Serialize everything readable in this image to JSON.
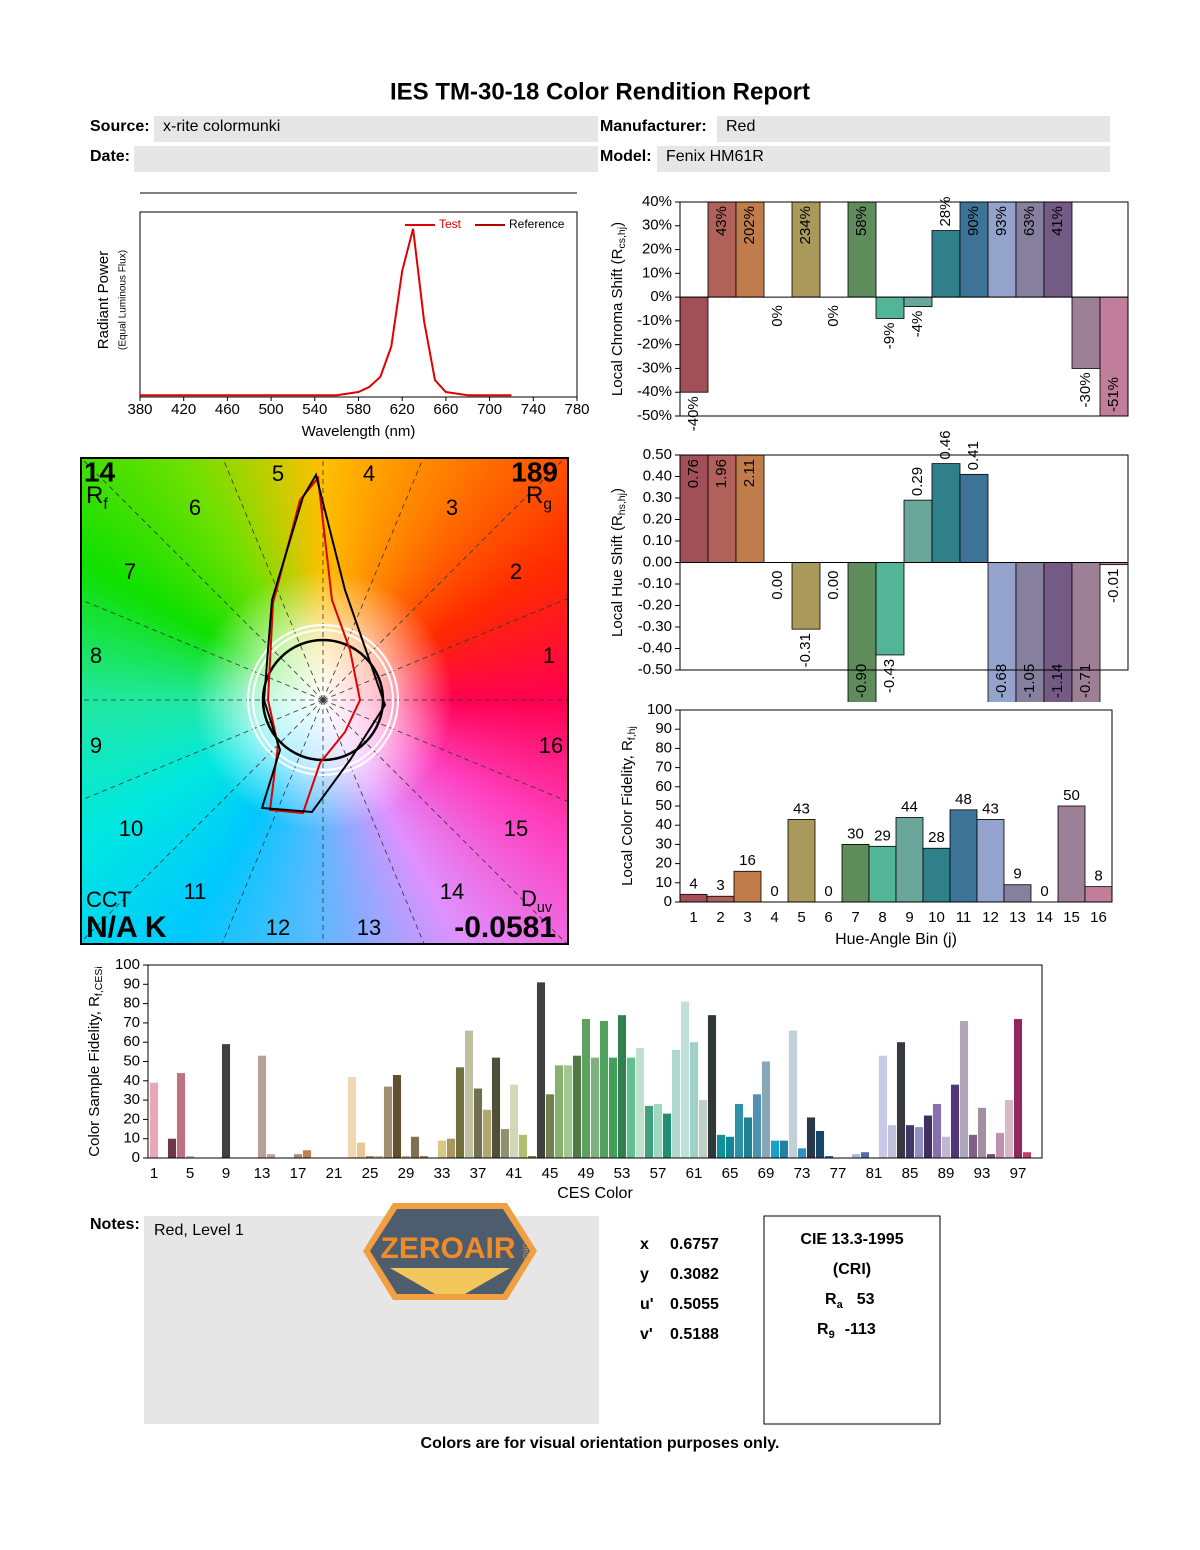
{
  "title": "IES TM-30-18 Color Rendition Report",
  "fields": {
    "source_label": "Source:",
    "source": "x-rite colormunki",
    "manufacturer_label": "Manufacturer:",
    "manufacturer": "Red",
    "date_label": "Date:",
    "model_label": "Model:",
    "model": "Fenix HM61R"
  },
  "chart_data": [
    {
      "type": "line",
      "xlabel": "Wavelength (nm)",
      "ylabel": "Radiant Power",
      "ylabel2": "(Equal Luminous Flux)",
      "x": [
        380,
        390,
        400,
        410,
        420,
        430,
        440,
        450,
        460,
        470,
        480,
        490,
        500,
        510,
        520,
        530,
        540,
        550,
        560,
        570,
        580,
        590,
        600,
        610,
        620,
        630,
        640,
        650,
        660,
        670,
        680,
        690,
        700,
        710,
        720,
        730,
        740,
        750,
        760,
        770,
        780
      ],
      "series": [
        {
          "name": "Test",
          "color": "#e00000",
          "values": [
            0.01,
            0.01,
            0.01,
            0.01,
            0.01,
            0.01,
            0.01,
            0.01,
            0.01,
            0.01,
            0.01,
            0.01,
            0.01,
            0.01,
            0.01,
            0.01,
            0.01,
            0.01,
            0.01,
            0.02,
            0.03,
            0.06,
            0.12,
            0.3,
            0.75,
            1.0,
            0.45,
            0.1,
            0.03,
            0.02,
            0.01,
            0.01,
            0.01,
            0.01,
            0.01,
            null,
            null,
            null,
            null,
            null,
            null
          ]
        },
        {
          "name": "Reference",
          "color": "#b00000",
          "values": [
            null,
            null,
            null,
            null,
            null,
            null,
            null,
            null,
            null,
            null,
            null,
            null,
            null,
            null,
            null,
            null,
            null,
            null,
            null,
            null,
            null,
            null,
            null,
            null,
            null,
            null,
            null,
            null,
            null,
            null,
            null,
            null,
            null,
            null,
            null,
            null,
            null,
            null,
            null,
            null,
            null
          ]
        }
      ],
      "xlim": [
        380,
        780
      ],
      "ylim": [
        0,
        1.1
      ],
      "xticks": [
        380,
        420,
        460,
        500,
        540,
        580,
        620,
        660,
        700,
        740,
        780
      ]
    },
    {
      "type": "bar",
      "ylabel": "Local Chroma Shift (R",
      "ylabel_sub": "cs,hj",
      "ylabel_end": ")",
      "values": [
        -40,
        43,
        202,
        0,
        234,
        0,
        58,
        -9,
        -4,
        28,
        90,
        93,
        63,
        41,
        -30,
        -51
      ],
      "value_labels": [
        "-40%",
        "43%",
        "202%",
        "0%",
        "234%",
        "0%",
        "58%",
        "-9%",
        "-4%",
        "28%",
        "90%",
        "93%",
        "63%",
        "41%",
        "-30%",
        "-51%"
      ],
      "colors": [
        "#a34f59",
        "#b0625a",
        "#c07d4b",
        "#c89c4a",
        "#a99a5c",
        "#8f9a5c",
        "#5e8c5a",
        "#52b597",
        "#6ba69a",
        "#2f8088",
        "#3d7397",
        "#94a3cb",
        "#86809e",
        "#745b86",
        "#9e8096",
        "#c07e9b"
      ],
      "ylim": [
        -50,
        40
      ],
      "yticks": [
        {
          "value": -50,
          "label": "-50%"
        },
        {
          "value": -40,
          "label": "-40%"
        },
        {
          "value": -30,
          "label": "-30%"
        },
        {
          "value": -20,
          "label": "-20%"
        },
        {
          "value": -10,
          "label": "-10%"
        },
        {
          "value": 0,
          "label": "0%"
        },
        {
          "value": 10,
          "label": "10%"
        },
        {
          "value": 20,
          "label": "20%"
        },
        {
          "value": 30,
          "label": "30%"
        },
        {
          "value": 40,
          "label": "40%"
        }
      ]
    },
    {
      "type": "bar",
      "ylabel": "Local Hue Shift (R",
      "ylabel_sub": "hs,hj",
      "ylabel_end": ")",
      "values": [
        0.76,
        1.96,
        2.11,
        0,
        -0.31,
        0,
        -0.9,
        -0.43,
        0.29,
        0.46,
        0.41,
        -0.68,
        -1.05,
        -1.14,
        -0.71,
        -0.01
      ],
      "value_labels": [
        "0.76",
        "1.96",
        "2.11",
        "0.00",
        "-0.31",
        "0.00",
        "-0.90",
        "-0.43",
        "0.29",
        "0.46",
        "0.41",
        "-0.68",
        "-1.05",
        "-1.14",
        "-0.71",
        "-0.01"
      ],
      "colors": [
        "#a34f59",
        "#b0625a",
        "#c07d4b",
        "#c89c4a",
        "#a99a5c",
        "#8f9a5c",
        "#5e8c5a",
        "#52b597",
        "#6ba69a",
        "#2f8088",
        "#3d7397",
        "#94a3cb",
        "#86809e",
        "#745b86",
        "#9e8096",
        "#c07e9b"
      ],
      "ylim": [
        -0.5,
        0.5
      ],
      "yticks": [
        {
          "value": -0.5,
          "label": "-0.50"
        },
        {
          "value": -0.4,
          "label": "-0.40"
        },
        {
          "value": -0.3,
          "label": "-0.30"
        },
        {
          "value": -0.2,
          "label": "-0.20"
        },
        {
          "value": -0.1,
          "label": "-0.10"
        },
        {
          "value": 0,
          "label": "0.00"
        },
        {
          "value": 0.1,
          "label": "0.10"
        },
        {
          "value": 0.2,
          "label": "0.20"
        },
        {
          "value": 0.3,
          "label": "0.30"
        },
        {
          "value": 0.4,
          "label": "0.40"
        },
        {
          "value": 0.5,
          "label": "0.50"
        }
      ]
    },
    {
      "type": "vector",
      "categories": [
        "1",
        "2",
        "3",
        "4",
        "5",
        "6",
        "7",
        "8",
        "9",
        "10",
        "11",
        "12",
        "13",
        "14",
        "15",
        "16"
      ],
      "rf": 14,
      "rf_label": "R",
      "rf_sub": "f",
      "rg": 189,
      "rg_label": "R",
      "rg_sub": "g",
      "cct_label": "CCT",
      "cct": "N/A K",
      "duv_label": "D",
      "duv_sub": "uv",
      "duv": -0.0581
    },
    {
      "type": "bar",
      "xlabel": "Hue-Angle Bin (j)",
      "ylabel": "Local Color Fidelity, R",
      "ylabel_sub": "f,hj",
      "categories": [
        "1",
        "2",
        "3",
        "4",
        "5",
        "6",
        "7",
        "8",
        "9",
        "10",
        "11",
        "12",
        "13",
        "14",
        "15",
        "16"
      ],
      "values": [
        4,
        3,
        16,
        0,
        43,
        0,
        30,
        29,
        44,
        28,
        48,
        43,
        9,
        0,
        50,
        8
      ],
      "colors": [
        "#a34f59",
        "#b0625a",
        "#c07d4b",
        "#c89c4a",
        "#a99a5c",
        "#8f9a5c",
        "#5e8c5a",
        "#52b597",
        "#6ba69a",
        "#2f8088",
        "#3d7397",
        "#94a3cb",
        "#86809e",
        "#745b86",
        "#9e8096",
        "#c07e9b"
      ],
      "ylim": [
        0,
        100
      ],
      "yticks": [
        0,
        10,
        20,
        30,
        40,
        50,
        60,
        70,
        80,
        90,
        100
      ]
    },
    {
      "type": "bar",
      "xlabel": "CES Color",
      "ylabel": "Color Sample Fidelity, R",
      "ylabel_sub": "f,CESi",
      "categories": [
        "1",
        null,
        null,
        null,
        "5",
        null,
        null,
        null,
        "9",
        null,
        null,
        null,
        "13",
        null,
        null,
        null,
        "17",
        null,
        null,
        null,
        "21",
        null,
        null,
        null,
        "25",
        null,
        null,
        null,
        "29",
        null,
        null,
        null,
        "33",
        null,
        null,
        null,
        "37",
        null,
        null,
        null,
        "41",
        null,
        null,
        null,
        "45",
        null,
        null,
        null,
        "49",
        null,
        null,
        null,
        "53",
        null,
        null,
        null,
        "57",
        null,
        null,
        null,
        "61",
        null,
        null,
        null,
        "65",
        null,
        null,
        null,
        "69",
        null,
        null,
        null,
        "73",
        null,
        null,
        null,
        "77",
        null,
        null,
        null,
        "81",
        null,
        null,
        null,
        "85",
        null,
        null,
        null,
        "89",
        null,
        null,
        null,
        "93",
        null,
        null,
        null,
        "97",
        null,
        null
      ],
      "values": [
        39,
        0,
        10,
        44,
        1,
        0,
        0,
        0,
        59,
        0,
        0,
        0,
        53,
        2,
        0,
        0,
        2,
        4,
        0,
        0,
        0,
        0,
        42,
        8,
        1,
        1,
        37,
        43,
        1,
        11,
        1,
        0,
        9,
        10,
        47,
        66,
        36,
        25,
        52,
        15,
        38,
        12,
        1,
        91,
        33,
        48,
        48,
        53,
        72,
        52,
        71,
        52,
        74,
        52,
        57,
        27,
        28,
        23,
        56,
        81,
        60,
        30,
        74,
        12,
        11,
        28,
        21,
        33,
        50,
        9,
        9,
        66,
        5,
        21,
        14,
        1,
        0,
        0,
        2,
        3,
        0,
        53,
        17,
        60,
        17,
        16,
        22,
        28,
        11,
        38,
        71,
        12,
        26,
        2,
        13,
        30,
        72,
        3,
        0
      ],
      "colors": [
        "#e8a8b8",
        "#c0a0a0",
        "#6a3a48",
        "#c07080",
        "#c8b0b0",
        "#b09090",
        "#806070",
        "#a08080",
        "#404040",
        "#907060",
        "#a09080",
        "#706050",
        "#b8a098",
        "#c0a090",
        "#908070",
        "#d0a080",
        "#b09070",
        "#c08050",
        "#806050",
        "#a08060",
        "#c0a070",
        "#e0c090",
        "#f0d8b0",
        "#e8c890",
        "#a09070",
        "#d0b890",
        "#a09070",
        "#605030",
        "#c0b080",
        "#807050",
        "#908050",
        "#c0b070",
        "#d8c880",
        "#a89860",
        "#707040",
        "#c0c0a0",
        "#707050",
        "#b0a870",
        "#505038",
        "#909070",
        "#d0d8b8",
        "#b0c070",
        "#708050",
        "#404040",
        "#708050",
        "#88b070",
        "#a0c890",
        "#507848",
        "#60a060",
        "#80b080",
        "#50a060",
        "#40a058",
        "#308050",
        "#60c090",
        "#c0e0d0",
        "#40a080",
        "#a0d8c0",
        "#209070",
        "#b0d8d0",
        "#c0e0d8",
        "#a0d0c8",
        "#c0d0c8",
        "#303838",
        "#109098",
        "#108898",
        "#3090a8",
        "#208090",
        "#5090b0",
        "#88a8b8",
        "#18a0c8",
        "#2080a8",
        "#c0d0d8",
        "#3090c0",
        "#283848",
        "#184868",
        "#2060a0",
        "#d8e0f0",
        "#c0c8e0",
        "#a8b8e0",
        "#5070a0",
        "#e0e0f0",
        "#c8c8e8",
        "#c0c0d8",
        "#383840",
        "#403868",
        "#9090c0",
        "#403060",
        "#8870b0",
        "#c0b8d0",
        "#503878",
        "#b0a8b8",
        "#806088",
        "#a090a0",
        "#804878",
        "#c090b0",
        "#d8b8c8",
        "#902860",
        "#c04060",
        "#e0a0b0"
      ],
      "ylim": [
        0,
        100
      ],
      "yticks": [
        0,
        10,
        20,
        30,
        40,
        50,
        60,
        70,
        80,
        90,
        100
      ]
    }
  ],
  "notes": {
    "label": "Notes:",
    "text": "Red, Level 1"
  },
  "logo": {
    "text": "ZEROAIR",
    "sub": "ORG"
  },
  "chromaticity": {
    "labels": [
      "x",
      "y",
      "u'",
      "v'"
    ],
    "values": [
      0.6757,
      0.3082,
      0.5055,
      0.5188
    ]
  },
  "cri": {
    "title": "CIE 13.3-1995",
    "subtitle": "(CRI)",
    "ra_label": "R",
    "ra_sub": "a",
    "ra": 53,
    "r9_label": "R",
    "r9_sub": "9",
    "r9": -113
  },
  "footer": "Colors are for visual orientation purposes only."
}
